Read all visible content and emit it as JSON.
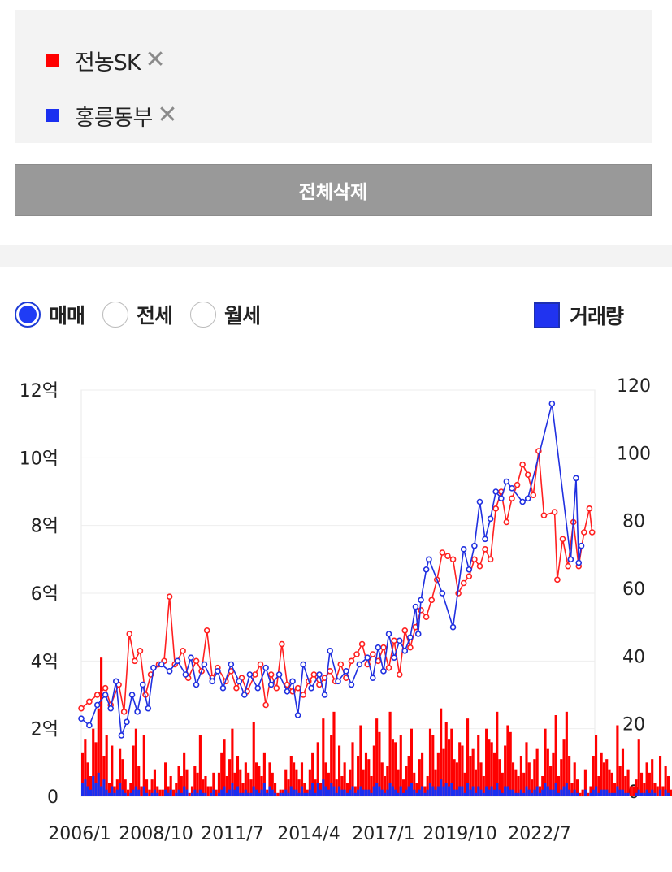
{
  "legend": {
    "items": [
      {
        "label": "전농SK",
        "color": "#ff0000",
        "close": "✕"
      },
      {
        "label": "홍릉동부",
        "color": "#1a2ff0",
        "close": "✕"
      }
    ]
  },
  "delete_all_label": "전체삭제",
  "trade_types": {
    "options": [
      {
        "label": "매매",
        "selected": true
      },
      {
        "label": "전세",
        "selected": false
      },
      {
        "label": "월세",
        "selected": false
      }
    ]
  },
  "volume_toggle": {
    "label": "거래량",
    "checked": true
  },
  "chart_data": {
    "type": "line",
    "x_tick_labels": [
      "2006/1",
      "2008/10",
      "2011/7",
      "2014/4",
      "2017/1",
      "2019/10",
      "2022/7"
    ],
    "y_left_ticks": [
      "0",
      "2억",
      "4억",
      "6억",
      "8억",
      "10억",
      "12억"
    ],
    "y_right_ticks": [
      "0",
      "20",
      "40",
      "60",
      "80",
      "100",
      "120"
    ],
    "ylim_left": [
      0,
      12
    ],
    "ylim_right": [
      0,
      120
    ],
    "grid": true,
    "series": [
      {
        "name": "전농SK",
        "color": "#ff2020",
        "points": [
          [
            2006.0,
            2.6
          ],
          [
            2006.3,
            2.8
          ],
          [
            2006.6,
            3.0
          ],
          [
            2006.9,
            3.2
          ],
          [
            2007.1,
            2.7
          ],
          [
            2007.4,
            3.3
          ],
          [
            2007.6,
            2.5
          ],
          [
            2007.8,
            4.8
          ],
          [
            2008.0,
            4.0
          ],
          [
            2008.2,
            4.3
          ],
          [
            2008.4,
            3.0
          ],
          [
            2008.6,
            3.6
          ],
          [
            2008.9,
            3.9
          ],
          [
            2009.1,
            4.0
          ],
          [
            2009.3,
            5.9
          ],
          [
            2009.5,
            3.9
          ],
          [
            2009.8,
            4.3
          ],
          [
            2010.0,
            3.5
          ],
          [
            2010.3,
            4.0
          ],
          [
            2010.5,
            3.7
          ],
          [
            2010.7,
            4.9
          ],
          [
            2010.9,
            3.5
          ],
          [
            2011.1,
            3.8
          ],
          [
            2011.4,
            3.4
          ],
          [
            2011.6,
            3.7
          ],
          [
            2011.8,
            3.2
          ],
          [
            2012.0,
            3.5
          ],
          [
            2012.2,
            3.1
          ],
          [
            2012.5,
            3.6
          ],
          [
            2012.7,
            3.9
          ],
          [
            2012.9,
            2.7
          ],
          [
            2013.1,
            3.6
          ],
          [
            2013.3,
            3.2
          ],
          [
            2013.5,
            4.5
          ],
          [
            2013.7,
            3.3
          ],
          [
            2013.9,
            3.1
          ],
          [
            2014.1,
            3.2
          ],
          [
            2014.3,
            3.0
          ],
          [
            2014.5,
            3.4
          ],
          [
            2014.7,
            3.6
          ],
          [
            2014.9,
            3.3
          ],
          [
            2015.1,
            3.5
          ],
          [
            2015.3,
            3.7
          ],
          [
            2015.5,
            3.4
          ],
          [
            2015.7,
            3.9
          ],
          [
            2015.9,
            3.5
          ],
          [
            2016.1,
            4.0
          ],
          [
            2016.3,
            4.2
          ],
          [
            2016.5,
            4.5
          ],
          [
            2016.7,
            3.9
          ],
          [
            2016.9,
            4.2
          ],
          [
            2017.1,
            4.0
          ],
          [
            2017.3,
            4.4
          ],
          [
            2017.5,
            3.8
          ],
          [
            2017.7,
            4.6
          ],
          [
            2017.9,
            3.6
          ],
          [
            2018.1,
            4.9
          ],
          [
            2018.3,
            4.4
          ],
          [
            2018.5,
            5.0
          ],
          [
            2018.7,
            5.5
          ],
          [
            2018.9,
            5.3
          ],
          [
            2019.1,
            5.8
          ],
          [
            2019.3,
            6.4
          ],
          [
            2019.5,
            7.2
          ],
          [
            2019.7,
            7.1
          ],
          [
            2019.9,
            7.0
          ],
          [
            2020.1,
            6.0
          ],
          [
            2020.3,
            6.3
          ],
          [
            2020.5,
            6.5
          ],
          [
            2020.7,
            7.0
          ],
          [
            2020.9,
            6.8
          ],
          [
            2021.1,
            7.3
          ],
          [
            2021.3,
            7.0
          ],
          [
            2021.5,
            8.5
          ],
          [
            2021.7,
            9.0
          ],
          [
            2021.9,
            8.1
          ],
          [
            2022.1,
            8.8
          ],
          [
            2022.3,
            9.2
          ],
          [
            2022.5,
            9.8
          ],
          [
            2022.7,
            9.5
          ],
          [
            2022.9,
            8.9
          ],
          [
            2023.1,
            10.2
          ],
          [
            2023.3,
            8.3
          ],
          [
            2023.7,
            8.4
          ],
          [
            2023.8,
            6.4
          ],
          [
            2024.0,
            7.6
          ],
          [
            2024.2,
            6.8
          ],
          [
            2024.4,
            8.1
          ],
          [
            2024.6,
            6.8
          ],
          [
            2024.8,
            7.8
          ],
          [
            2025.0,
            8.5
          ],
          [
            2025.1,
            7.8
          ]
        ]
      },
      {
        "name": "홍릉동부",
        "color": "#2030e0",
        "points": [
          [
            2006.0,
            2.3
          ],
          [
            2006.3,
            2.1
          ],
          [
            2006.6,
            2.7
          ],
          [
            2006.9,
            3.0
          ],
          [
            2007.1,
            2.6
          ],
          [
            2007.3,
            3.4
          ],
          [
            2007.5,
            1.8
          ],
          [
            2007.7,
            2.2
          ],
          [
            2007.9,
            3.0
          ],
          [
            2008.1,
            2.5
          ],
          [
            2008.3,
            3.3
          ],
          [
            2008.5,
            2.6
          ],
          [
            2008.7,
            3.8
          ],
          [
            2009.0,
            3.9
          ],
          [
            2009.3,
            3.7
          ],
          [
            2009.6,
            4.0
          ],
          [
            2009.9,
            3.6
          ],
          [
            2010.1,
            4.1
          ],
          [
            2010.3,
            3.3
          ],
          [
            2010.6,
            3.9
          ],
          [
            2010.9,
            3.4
          ],
          [
            2011.1,
            3.7
          ],
          [
            2011.3,
            3.2
          ],
          [
            2011.6,
            3.9
          ],
          [
            2011.9,
            3.4
          ],
          [
            2012.1,
            3.0
          ],
          [
            2012.3,
            3.6
          ],
          [
            2012.6,
            3.2
          ],
          [
            2012.9,
            3.8
          ],
          [
            2013.1,
            3.3
          ],
          [
            2013.4,
            3.6
          ],
          [
            2013.7,
            3.1
          ],
          [
            2013.9,
            3.4
          ],
          [
            2014.1,
            2.4
          ],
          [
            2014.3,
            3.9
          ],
          [
            2014.6,
            3.2
          ],
          [
            2014.9,
            3.6
          ],
          [
            2015.1,
            3.0
          ],
          [
            2015.3,
            4.3
          ],
          [
            2015.6,
            3.4
          ],
          [
            2015.9,
            3.7
          ],
          [
            2016.1,
            3.3
          ],
          [
            2016.4,
            3.9
          ],
          [
            2016.7,
            4.1
          ],
          [
            2016.9,
            3.5
          ],
          [
            2017.1,
            4.4
          ],
          [
            2017.3,
            3.7
          ],
          [
            2017.5,
            4.8
          ],
          [
            2017.7,
            4.1
          ],
          [
            2017.9,
            4.6
          ],
          [
            2018.1,
            4.3
          ],
          [
            2018.3,
            4.7
          ],
          [
            2018.5,
            5.6
          ],
          [
            2018.6,
            4.8
          ],
          [
            2018.7,
            5.8
          ],
          [
            2018.9,
            6.7
          ],
          [
            2019.0,
            7.0
          ],
          [
            2019.5,
            6.0
          ],
          [
            2019.9,
            5.0
          ],
          [
            2020.3,
            7.3
          ],
          [
            2020.5,
            6.7
          ],
          [
            2020.7,
            7.4
          ],
          [
            2020.9,
            8.7
          ],
          [
            2021.1,
            7.6
          ],
          [
            2021.3,
            8.2
          ],
          [
            2021.5,
            9.0
          ],
          [
            2021.7,
            8.8
          ],
          [
            2021.9,
            9.3
          ],
          [
            2022.1,
            9.1
          ],
          [
            2022.5,
            8.7
          ],
          [
            2022.7,
            8.8
          ],
          [
            2023.6,
            11.6
          ],
          [
            2024.3,
            7.0
          ],
          [
            2024.5,
            9.4
          ],
          [
            2024.6,
            6.9
          ],
          [
            2024.7,
            7.4
          ]
        ]
      }
    ],
    "volume": {
      "start": 2006.0,
      "step": 0.1,
      "colors": {
        "전농SK": "#ff0000",
        "홍릉동부": "#1a2ff0"
      },
      "전농SK": [
        13,
        17,
        10,
        6,
        20,
        16,
        26,
        41,
        12,
        18,
        4,
        15,
        3,
        5,
        14,
        11,
        5,
        2,
        4,
        15,
        20,
        9,
        3,
        18,
        5,
        2,
        5,
        8,
        3,
        2,
        2,
        10,
        3,
        6,
        2,
        4,
        9,
        6,
        13,
        8,
        1,
        3,
        9,
        7,
        18,
        5,
        6,
        3,
        3,
        7,
        2,
        7,
        13,
        17,
        6,
        11,
        20,
        7,
        12,
        8,
        4,
        10,
        7,
        5,
        22,
        10,
        9,
        6,
        13,
        2,
        10,
        7,
        4,
        1,
        2,
        2,
        8,
        5,
        12,
        10,
        8,
        5,
        10,
        4,
        2,
        8,
        13,
        5,
        16,
        4,
        23,
        10,
        7,
        18,
        25,
        5,
        15,
        6,
        10,
        4,
        8,
        16,
        3,
        12,
        21,
        8,
        13,
        11,
        6,
        15,
        23,
        19,
        10,
        6,
        9,
        25,
        17,
        16,
        8,
        18,
        5,
        9,
        12,
        20,
        7,
        4,
        11,
        13,
        3,
        6,
        20,
        18,
        8,
        13,
        26,
        14,
        22,
        17,
        20,
        11,
        10,
        16,
        15,
        7,
        23,
        12,
        14,
        8,
        18,
        10,
        6,
        20,
        17,
        16,
        13,
        25,
        11,
        7,
        15,
        21,
        19,
        10,
        8,
        6,
        12,
        7,
        16,
        10,
        5,
        11,
        14,
        3,
        6,
        20,
        14,
        9,
        13,
        24,
        6,
        11,
        17,
        25,
        12,
        4,
        10,
        5,
        1,
        2,
        8,
        1,
        3,
        12,
        18,
        6,
        13,
        10,
        11,
        8,
        7,
        4,
        21,
        9,
        14,
        6,
        8,
        3,
        3,
        5,
        17,
        7,
        4,
        10,
        7,
        11,
        4,
        3,
        12,
        3,
        9,
        6,
        2,
        5,
        0,
        0,
        1,
        0,
        0,
        0,
        1,
        0,
        0,
        0,
        1,
        0,
        0,
        0,
        1,
        0,
        4,
        3,
        5,
        6,
        4,
        2,
        8,
        4,
        9,
        3,
        5,
        4,
        6,
        3,
        5,
        8,
        3,
        7,
        5,
        3
      ],
      "홍릉동부": [
        4,
        5,
        3,
        2,
        6,
        4,
        7,
        3,
        5,
        2,
        1,
        3,
        1,
        2,
        4,
        2,
        1,
        0,
        1,
        2,
        3,
        2,
        0,
        3,
        1,
        0,
        1,
        2,
        1,
        0,
        0,
        2,
        1,
        2,
        0,
        1,
        2,
        1,
        3,
        2,
        0,
        1,
        2,
        1,
        2,
        1,
        1,
        0,
        1,
        2,
        0,
        1,
        2,
        3,
        1,
        2,
        4,
        2,
        3,
        1,
        1,
        2,
        1,
        1,
        3,
        2,
        1,
        2,
        4,
        1,
        3,
        2,
        1,
        0,
        1,
        1,
        2,
        1,
        3,
        2,
        2,
        1,
        3,
        1,
        1,
        2,
        4,
        1,
        4,
        2,
        5,
        3,
        2,
        4,
        3,
        1,
        3,
        2,
        2,
        1,
        2,
        3,
        1,
        2,
        3,
        2,
        2,
        2,
        1,
        3,
        4,
        3,
        2,
        1,
        2,
        4,
        3,
        2,
        1,
        3,
        1,
        2,
        3,
        4,
        2,
        1,
        2,
        3,
        1,
        2,
        4,
        3,
        2,
        3,
        5,
        3,
        4,
        3,
        4,
        2,
        2,
        3,
        3,
        1,
        4,
        2,
        3,
        1,
        3,
        2,
        1,
        3,
        2,
        3,
        2,
        4,
        2,
        1,
        3,
        3,
        2,
        2,
        1,
        1,
        2,
        1,
        3,
        2,
        1,
        2,
        3,
        1,
        2,
        4,
        3,
        2,
        2,
        4,
        1,
        2,
        3,
        4,
        2,
        1,
        2,
        1,
        0,
        0,
        2,
        0,
        1,
        2,
        3,
        1,
        2,
        2,
        2,
        1,
        1,
        1,
        3,
        2,
        2,
        1,
        1,
        0,
        0,
        1,
        2,
        1,
        1,
        2,
        1,
        2,
        1,
        0,
        2,
        0,
        2,
        1,
        0,
        1,
        0,
        0,
        0,
        0,
        0,
        0,
        0,
        0,
        0,
        0,
        0,
        0,
        0,
        0,
        0,
        0,
        0,
        0,
        0,
        1,
        0,
        1,
        0,
        0,
        1,
        0,
        1,
        0,
        0,
        0,
        1,
        0,
        0,
        1,
        0,
        1,
        0,
        0
      ]
    }
  }
}
